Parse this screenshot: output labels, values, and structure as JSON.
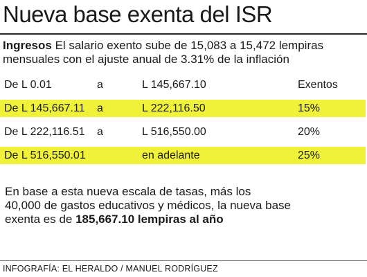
{
  "title": "Nueva base exenta del ISR",
  "intro": {
    "lead": "Ingresos",
    "text": " El salario exento sube de 15,083 a 15,472 lempiras mensuales con el ajuste anual de 3.31% de la inflación"
  },
  "table": {
    "rows": [
      {
        "from": "De L 0.01",
        "connector": "a",
        "to": "L 145,667.10",
        "rate": "Exentos",
        "highlight": false
      },
      {
        "from": "De L 145,667.11",
        "connector": "a",
        "to": "L 222,116.50",
        "rate": "15%",
        "highlight": true
      },
      {
        "from": "De L 222,116.51",
        "connector": "a",
        "to": "L 516,550.00",
        "rate": "20%",
        "highlight": false
      },
      {
        "from": "De L 516,550.01",
        "connector": "",
        "to": "en adelante",
        "rate": "25%",
        "highlight": true
      }
    ]
  },
  "body": {
    "line1": "En base a esta nueva escala de tasas, más los",
    "line2": "40,000 de gastos educativos y médicos, la nueva base",
    "line3_prefix": "exenta es de ",
    "line3_bold": "185,667.10 lempiras al año"
  },
  "credit": "INFOGRAFÍA: EL HERALDO / MANUEL RODRÍGUEZ",
  "colors": {
    "highlight": "#f0f23a",
    "text": "#1a1a1a"
  }
}
